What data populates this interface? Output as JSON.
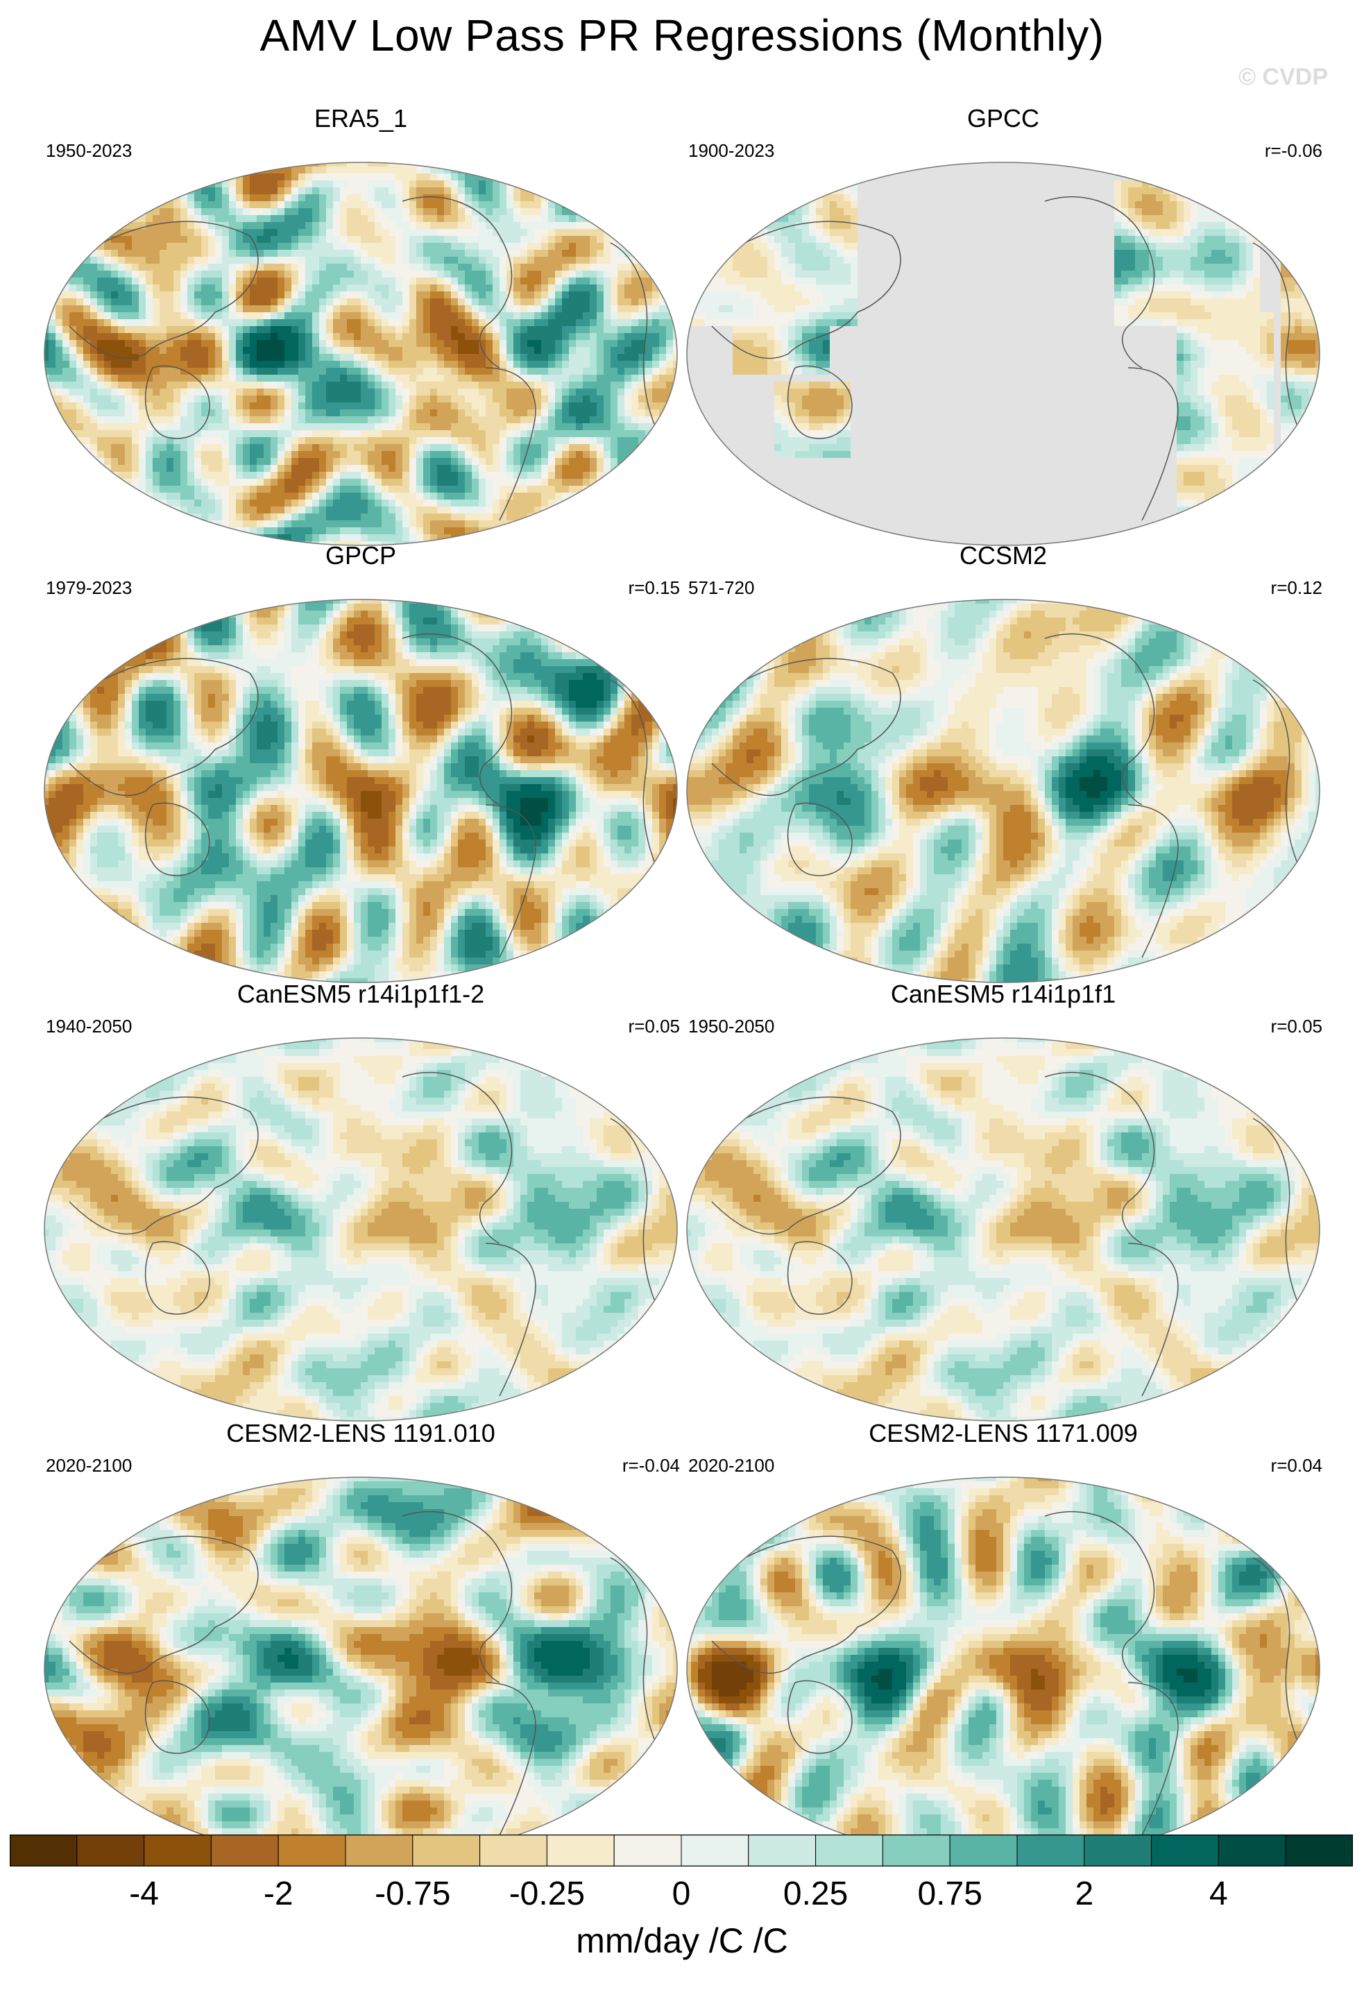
{
  "title": "AMV Low Pass PR Regressions (Monthly)",
  "watermark": "© CVDP",
  "colors": {
    "palette": [
      "#543005",
      "#744009",
      "#8c510a",
      "#a76623",
      "#bf812d",
      "#d2a45a",
      "#e3c580",
      "#efdcaa",
      "#f6ebcb",
      "#f5f2ec",
      "#e8f2ef",
      "#cdeae4",
      "#b2e2d8",
      "#86cfbf",
      "#5ab4a5",
      "#35978f",
      "#1f7f76",
      "#01665e",
      "#004e44",
      "#003c30"
    ],
    "missing": "#e2e2e2",
    "coastline": "#555555"
  },
  "panels": [
    {
      "id": "era5",
      "title": "ERA5_1",
      "years": "1950-2023",
      "corr": "",
      "variant": "full",
      "strength": 1.0,
      "seed": 3
    },
    {
      "id": "gpcc",
      "title": "GPCC",
      "years": "1900-2023",
      "corr": "r=-0.06",
      "variant": "land",
      "strength": 0.6,
      "seed": 11
    },
    {
      "id": "gpcp",
      "title": "GPCP",
      "years": "1979-2023",
      "corr": "r=0.15",
      "variant": "full",
      "strength": 1.0,
      "seed": 23
    },
    {
      "id": "ccsm2",
      "title": "CCSM2",
      "years": "571-720",
      "corr": "r=0.12",
      "variant": "full",
      "strength": 0.75,
      "seed": 37
    },
    {
      "id": "canesm5a",
      "title": "CanESM5 r14i1p1f1-2",
      "years": "1940-2050",
      "corr": "r=0.05",
      "variant": "full",
      "strength": 0.5,
      "seed": 41
    },
    {
      "id": "canesm5b",
      "title": "CanESM5 r14i1p1f1",
      "years": "1950-2050",
      "corr": "r=0.05",
      "variant": "full",
      "strength": 0.5,
      "seed": 41
    },
    {
      "id": "cesm2a",
      "title": "CESM2-LENS 1191.010",
      "years": "2020-2100",
      "corr": "r=-0.04",
      "variant": "full",
      "strength": 0.95,
      "seed": 53
    },
    {
      "id": "cesm2b",
      "title": "CESM2-LENS 1171.009",
      "years": "2020-2100",
      "corr": "r=0.04",
      "variant": "full",
      "strength": 0.95,
      "seed": 67
    }
  ],
  "colorbar": {
    "labels": [
      "-4",
      "-2",
      "-0.75",
      "-0.25",
      "0",
      "0.25",
      "0.75",
      "2",
      "4"
    ],
    "units": "mm/day /C /C"
  }
}
